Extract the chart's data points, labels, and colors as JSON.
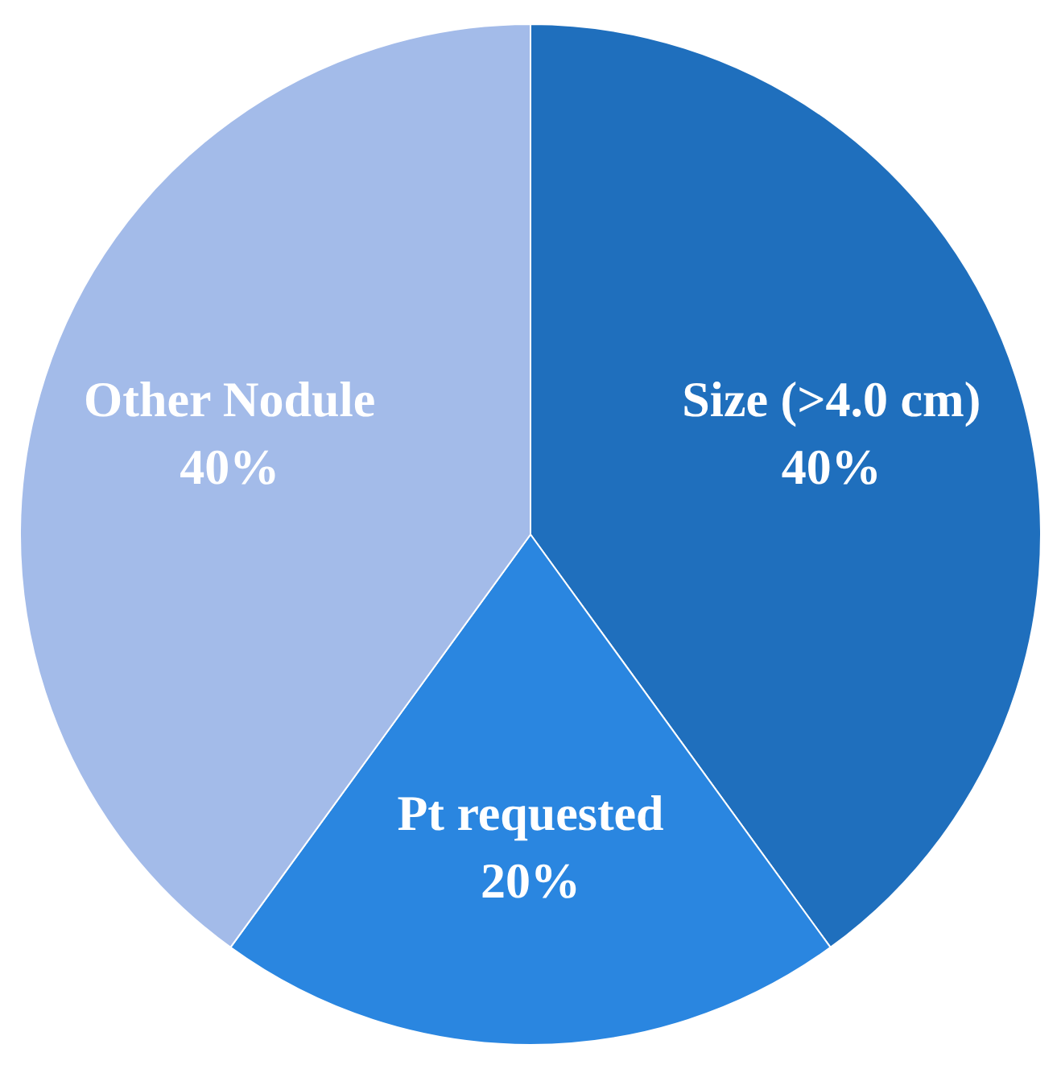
{
  "chart_data": {
    "type": "pie",
    "categories": [
      "Size (>4.0 cm)",
      "Pt requested",
      "Other Nodule"
    ],
    "values": [
      40,
      20,
      40
    ],
    "colors": [
      "#1f6fbd",
      "#2a86e0",
      "#a3bbe9"
    ],
    "value_labels": [
      "40%",
      "20%",
      "40%"
    ],
    "legend": false
  }
}
